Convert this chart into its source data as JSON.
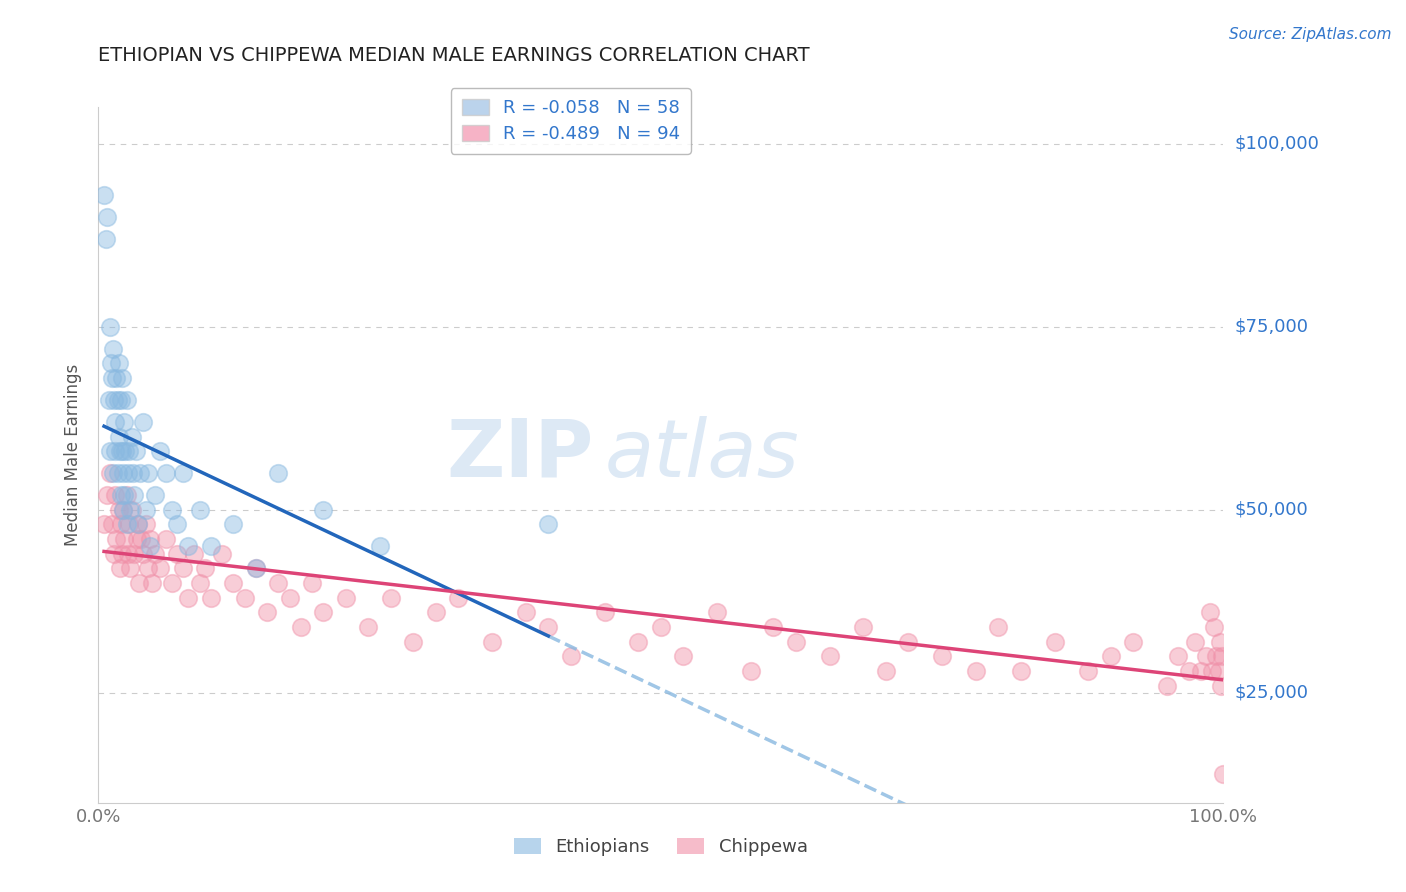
{
  "title": "ETHIOPIAN VS CHIPPEWA MEDIAN MALE EARNINGS CORRELATION CHART",
  "source_text": "Source: ZipAtlas.com",
  "ylabel": "Median Male Earnings",
  "xlim": [
    0.0,
    1.0
  ],
  "ylim": [
    10000,
    105000
  ],
  "yticks": [
    25000,
    50000,
    75000,
    100000
  ],
  "ytick_labels": [
    "$25,000",
    "$50,000",
    "$75,000",
    "$100,000"
  ],
  "xtick_labels": [
    "0.0%",
    "100.0%"
  ],
  "watermark_zip": "ZIP",
  "watermark_atlas": "atlas",
  "legend_entries": [
    {
      "label": "R = -0.058   N = 58",
      "color": "#aac8e8"
    },
    {
      "label": "R = -0.489   N = 94",
      "color": "#f4a0b8"
    }
  ],
  "ethiopian_color": "#88b8e0",
  "chippewa_color": "#f090a8",
  "trend_blue_color": "#2266bb",
  "trend_pink_color": "#dd4477",
  "dashed_line_color": "#88b8e0",
  "grid_color": "#cccccc",
  "title_color": "#222222",
  "axis_label_color": "#555555",
  "tick_label_color": "#3377cc",
  "ethiopian_x": [
    0.005,
    0.007,
    0.008,
    0.009,
    0.01,
    0.01,
    0.011,
    0.012,
    0.013,
    0.013,
    0.014,
    0.015,
    0.015,
    0.016,
    0.017,
    0.017,
    0.018,
    0.018,
    0.019,
    0.02,
    0.02,
    0.021,
    0.021,
    0.022,
    0.022,
    0.023,
    0.023,
    0.024,
    0.025,
    0.025,
    0.026,
    0.027,
    0.028,
    0.03,
    0.031,
    0.032,
    0.033,
    0.035,
    0.037,
    0.04,
    0.042,
    0.044,
    0.046,
    0.05,
    0.055,
    0.06,
    0.065,
    0.07,
    0.075,
    0.08,
    0.09,
    0.1,
    0.12,
    0.14,
    0.16,
    0.2,
    0.25,
    0.4
  ],
  "ethiopian_y": [
    93000,
    87000,
    90000,
    65000,
    75000,
    58000,
    70000,
    68000,
    72000,
    55000,
    65000,
    62000,
    58000,
    68000,
    65000,
    55000,
    70000,
    60000,
    58000,
    65000,
    52000,
    68000,
    58000,
    55000,
    50000,
    62000,
    52000,
    58000,
    65000,
    48000,
    55000,
    58000,
    50000,
    60000,
    55000,
    52000,
    58000,
    48000,
    55000,
    62000,
    50000,
    55000,
    45000,
    52000,
    58000,
    55000,
    50000,
    48000,
    55000,
    45000,
    50000,
    45000,
    48000,
    42000,
    55000,
    50000,
    45000,
    48000
  ],
  "chippewa_x": [
    0.005,
    0.008,
    0.01,
    0.012,
    0.014,
    0.015,
    0.016,
    0.018,
    0.019,
    0.02,
    0.021,
    0.022,
    0.023,
    0.025,
    0.026,
    0.027,
    0.028,
    0.03,
    0.032,
    0.034,
    0.035,
    0.036,
    0.038,
    0.04,
    0.042,
    0.044,
    0.046,
    0.048,
    0.05,
    0.055,
    0.06,
    0.065,
    0.07,
    0.075,
    0.08,
    0.085,
    0.09,
    0.095,
    0.1,
    0.11,
    0.12,
    0.13,
    0.14,
    0.15,
    0.16,
    0.17,
    0.18,
    0.19,
    0.2,
    0.22,
    0.24,
    0.26,
    0.28,
    0.3,
    0.32,
    0.35,
    0.38,
    0.4,
    0.42,
    0.45,
    0.48,
    0.5,
    0.52,
    0.55,
    0.58,
    0.6,
    0.62,
    0.65,
    0.68,
    0.7,
    0.72,
    0.75,
    0.78,
    0.8,
    0.82,
    0.85,
    0.88,
    0.9,
    0.92,
    0.95,
    0.96,
    0.97,
    0.975,
    0.98,
    0.985,
    0.988,
    0.99,
    0.992,
    0.994,
    0.996,
    0.997,
    0.998,
    0.999,
    1.0
  ],
  "chippewa_y": [
    48000,
    52000,
    55000,
    48000,
    44000,
    52000,
    46000,
    50000,
    42000,
    48000,
    44000,
    50000,
    46000,
    52000,
    44000,
    48000,
    42000,
    50000,
    44000,
    46000,
    48000,
    40000,
    46000,
    44000,
    48000,
    42000,
    46000,
    40000,
    44000,
    42000,
    46000,
    40000,
    44000,
    42000,
    38000,
    44000,
    40000,
    42000,
    38000,
    44000,
    40000,
    38000,
    42000,
    36000,
    40000,
    38000,
    34000,
    40000,
    36000,
    38000,
    34000,
    38000,
    32000,
    36000,
    38000,
    32000,
    36000,
    34000,
    30000,
    36000,
    32000,
    34000,
    30000,
    36000,
    28000,
    34000,
    32000,
    30000,
    34000,
    28000,
    32000,
    30000,
    28000,
    34000,
    28000,
    32000,
    28000,
    30000,
    32000,
    26000,
    30000,
    28000,
    32000,
    28000,
    30000,
    36000,
    28000,
    34000,
    30000,
    28000,
    32000,
    26000,
    30000,
    14000
  ]
}
